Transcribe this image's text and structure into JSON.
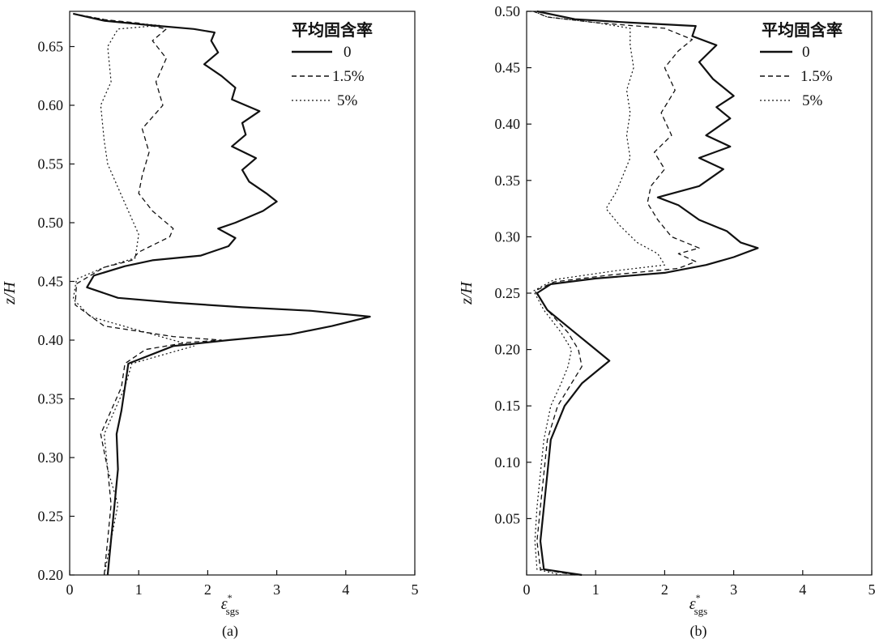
{
  "chart_data": [
    {
      "type": "line",
      "panel_label": "(a)",
      "xlabel_main": "ε",
      "xlabel_sup": "*",
      "xlabel_sub": "sgs",
      "ylabel": "z/H",
      "xlim": [
        0,
        5
      ],
      "ylim": [
        0.2,
        0.68
      ],
      "xticks": [
        "0",
        "1",
        "2",
        "3",
        "4",
        "5"
      ],
      "yticks": [
        "0.20",
        "0.25",
        "0.30",
        "0.35",
        "0.40",
        "0.45",
        "0.50",
        "0.55",
        "0.60",
        "0.65"
      ],
      "legend": {
        "title": "平均固含率",
        "position": "top-right"
      },
      "series": [
        {
          "name": "0",
          "style": "solid",
          "points": [
            [
              0.55,
              0.2
            ],
            [
              0.6,
              0.23
            ],
            [
              0.65,
              0.26
            ],
            [
              0.7,
              0.29
            ],
            [
              0.68,
              0.32
            ],
            [
              0.75,
              0.34
            ],
            [
              0.8,
              0.36
            ],
            [
              0.85,
              0.38
            ],
            [
              1.5,
              0.395
            ],
            [
              2.3,
              0.4
            ],
            [
              3.2,
              0.405
            ],
            [
              3.8,
              0.412
            ],
            [
              4.35,
              0.42
            ],
            [
              3.5,
              0.425
            ],
            [
              2.5,
              0.428
            ],
            [
              1.5,
              0.432
            ],
            [
              0.7,
              0.436
            ],
            [
              0.25,
              0.445
            ],
            [
              0.35,
              0.455
            ],
            [
              0.8,
              0.463
            ],
            [
              1.2,
              0.468
            ],
            [
              1.9,
              0.472
            ],
            [
              2.3,
              0.48
            ],
            [
              2.4,
              0.487
            ],
            [
              2.15,
              0.495
            ],
            [
              2.4,
              0.5
            ],
            [
              2.8,
              0.51
            ],
            [
              3.0,
              0.518
            ],
            [
              2.85,
              0.525
            ],
            [
              2.6,
              0.535
            ],
            [
              2.5,
              0.545
            ],
            [
              2.7,
              0.555
            ],
            [
              2.35,
              0.565
            ],
            [
              2.55,
              0.575
            ],
            [
              2.5,
              0.585
            ],
            [
              2.75,
              0.595
            ],
            [
              2.35,
              0.605
            ],
            [
              2.4,
              0.615
            ],
            [
              2.2,
              0.625
            ],
            [
              1.95,
              0.635
            ],
            [
              2.15,
              0.645
            ],
            [
              2.05,
              0.655
            ],
            [
              2.1,
              0.662
            ],
            [
              1.8,
              0.665
            ],
            [
              1.2,
              0.668
            ],
            [
              0.5,
              0.672
            ],
            [
              0.05,
              0.678
            ]
          ]
        },
        {
          "name": "1.5%",
          "style": "dashed",
          "points": [
            [
              0.5,
              0.2
            ],
            [
              0.55,
              0.23
            ],
            [
              0.6,
              0.26
            ],
            [
              0.55,
              0.29
            ],
            [
              0.45,
              0.32
            ],
            [
              0.6,
              0.34
            ],
            [
              0.75,
              0.36
            ],
            [
              0.8,
              0.38
            ],
            [
              1.1,
              0.392
            ],
            [
              1.7,
              0.398
            ],
            [
              2.2,
              0.4
            ],
            [
              1.5,
              0.403
            ],
            [
              0.5,
              0.412
            ],
            [
              0.08,
              0.43
            ],
            [
              0.1,
              0.448
            ],
            [
              0.5,
              0.462
            ],
            [
              0.9,
              0.468
            ],
            [
              1.0,
              0.475
            ],
            [
              1.45,
              0.488
            ],
            [
              1.5,
              0.495
            ],
            [
              1.2,
              0.51
            ],
            [
              1.0,
              0.525
            ],
            [
              1.05,
              0.54
            ],
            [
              1.15,
              0.56
            ],
            [
              1.05,
              0.58
            ],
            [
              1.35,
              0.6
            ],
            [
              1.25,
              0.62
            ],
            [
              1.4,
              0.64
            ],
            [
              1.2,
              0.655
            ],
            [
              1.4,
              0.665
            ],
            [
              1.0,
              0.67
            ],
            [
              0.5,
              0.673
            ],
            [
              0.05,
              0.678
            ]
          ]
        },
        {
          "name": "5%",
          "style": "dotted",
          "points": [
            [
              0.5,
              0.2
            ],
            [
              0.6,
              0.23
            ],
            [
              0.7,
              0.26
            ],
            [
              0.55,
              0.29
            ],
            [
              0.5,
              0.32
            ],
            [
              0.65,
              0.34
            ],
            [
              0.8,
              0.36
            ],
            [
              0.9,
              0.38
            ],
            [
              1.5,
              0.39
            ],
            [
              1.8,
              0.395
            ],
            [
              1.2,
              0.405
            ],
            [
              0.3,
              0.42
            ],
            [
              0.05,
              0.435
            ],
            [
              0.1,
              0.452
            ],
            [
              0.5,
              0.462
            ],
            [
              0.95,
              0.47
            ],
            [
              1.0,
              0.49
            ],
            [
              0.85,
              0.51
            ],
            [
              0.7,
              0.53
            ],
            [
              0.55,
              0.55
            ],
            [
              0.5,
              0.57
            ],
            [
              0.45,
              0.6
            ],
            [
              0.6,
              0.62
            ],
            [
              0.55,
              0.65
            ],
            [
              0.7,
              0.665
            ],
            [
              1.3,
              0.668
            ],
            [
              0.6,
              0.672
            ],
            [
              0.05,
              0.678
            ]
          ]
        }
      ]
    },
    {
      "type": "line",
      "panel_label": "(b)",
      "xlabel_main": "ε",
      "xlabel_sup": "*",
      "xlabel_sub": "sgs",
      "ylabel": "z/H",
      "xlim": [
        0,
        5
      ],
      "ylim": [
        0,
        0.5
      ],
      "xticks": [
        "0",
        "1",
        "2",
        "3",
        "4",
        "5"
      ],
      "yticks": [
        "0.05",
        "0.10",
        "0.15",
        "0.20",
        "0.25",
        "0.30",
        "0.35",
        "0.40",
        "0.45",
        "0.50"
      ],
      "legend": {
        "title": "平均固含率",
        "position": "top-right"
      },
      "series": [
        {
          "name": "0",
          "style": "solid",
          "points": [
            [
              0.8,
              0.0
            ],
            [
              0.25,
              0.005
            ],
            [
              0.2,
              0.03
            ],
            [
              0.25,
              0.06
            ],
            [
              0.3,
              0.09
            ],
            [
              0.35,
              0.12
            ],
            [
              0.55,
              0.15
            ],
            [
              0.8,
              0.17
            ],
            [
              1.0,
              0.18
            ],
            [
              1.2,
              0.19
            ],
            [
              0.9,
              0.205
            ],
            [
              0.7,
              0.215
            ],
            [
              0.3,
              0.235
            ],
            [
              0.15,
              0.25
            ],
            [
              0.35,
              0.258
            ],
            [
              1.0,
              0.263
            ],
            [
              2.0,
              0.268
            ],
            [
              2.6,
              0.275
            ],
            [
              3.0,
              0.282
            ],
            [
              3.35,
              0.29
            ],
            [
              3.1,
              0.295
            ],
            [
              2.9,
              0.305
            ],
            [
              2.5,
              0.315
            ],
            [
              2.2,
              0.328
            ],
            [
              1.9,
              0.335
            ],
            [
              2.5,
              0.345
            ],
            [
              2.85,
              0.36
            ],
            [
              2.5,
              0.37
            ],
            [
              2.95,
              0.38
            ],
            [
              2.6,
              0.39
            ],
            [
              2.95,
              0.405
            ],
            [
              2.75,
              0.415
            ],
            [
              3.0,
              0.425
            ],
            [
              2.7,
              0.44
            ],
            [
              2.5,
              0.455
            ],
            [
              2.75,
              0.47
            ],
            [
              2.4,
              0.478
            ],
            [
              2.45,
              0.487
            ],
            [
              1.5,
              0.49
            ],
            [
              0.7,
              0.493
            ],
            [
              0.15,
              0.5
            ]
          ]
        },
        {
          "name": "1.5%",
          "style": "dashed",
          "points": [
            [
              0.7,
              0.0
            ],
            [
              0.2,
              0.005
            ],
            [
              0.15,
              0.03
            ],
            [
              0.2,
              0.06
            ],
            [
              0.25,
              0.09
            ],
            [
              0.3,
              0.12
            ],
            [
              0.45,
              0.15
            ],
            [
              0.65,
              0.17
            ],
            [
              0.8,
              0.185
            ],
            [
              0.75,
              0.2
            ],
            [
              0.6,
              0.215
            ],
            [
              0.3,
              0.235
            ],
            [
              0.12,
              0.252
            ],
            [
              0.4,
              0.26
            ],
            [
              1.2,
              0.266
            ],
            [
              2.2,
              0.272
            ],
            [
              2.45,
              0.278
            ],
            [
              2.2,
              0.285
            ],
            [
              2.5,
              0.29
            ],
            [
              2.1,
              0.3
            ],
            [
              1.9,
              0.315
            ],
            [
              1.75,
              0.33
            ],
            [
              1.8,
              0.345
            ],
            [
              2.0,
              0.36
            ],
            [
              1.85,
              0.375
            ],
            [
              2.1,
              0.39
            ],
            [
              1.95,
              0.41
            ],
            [
              2.15,
              0.43
            ],
            [
              2.0,
              0.45
            ],
            [
              2.2,
              0.465
            ],
            [
              2.4,
              0.475
            ],
            [
              2.0,
              0.485
            ],
            [
              1.0,
              0.49
            ],
            [
              0.3,
              0.495
            ],
            [
              0.1,
              0.5
            ]
          ]
        },
        {
          "name": "5%",
          "style": "dotted",
          "points": [
            [
              0.5,
              0.0
            ],
            [
              0.15,
              0.005
            ],
            [
              0.12,
              0.03
            ],
            [
              0.15,
              0.06
            ],
            [
              0.2,
              0.09
            ],
            [
              0.25,
              0.12
            ],
            [
              0.35,
              0.15
            ],
            [
              0.5,
              0.17
            ],
            [
              0.6,
              0.185
            ],
            [
              0.65,
              0.2
            ],
            [
              0.5,
              0.215
            ],
            [
              0.25,
              0.235
            ],
            [
              0.1,
              0.252
            ],
            [
              0.4,
              0.262
            ],
            [
              1.3,
              0.27
            ],
            [
              2.0,
              0.275
            ],
            [
              1.9,
              0.285
            ],
            [
              1.6,
              0.295
            ],
            [
              1.35,
              0.31
            ],
            [
              1.15,
              0.325
            ],
            [
              1.3,
              0.34
            ],
            [
              1.4,
              0.355
            ],
            [
              1.5,
              0.37
            ],
            [
              1.45,
              0.39
            ],
            [
              1.5,
              0.41
            ],
            [
              1.45,
              0.43
            ],
            [
              1.55,
              0.45
            ],
            [
              1.5,
              0.47
            ],
            [
              1.5,
              0.485
            ],
            [
              1.0,
              0.49
            ],
            [
              0.3,
              0.495
            ],
            [
              0.1,
              0.5
            ]
          ]
        }
      ]
    }
  ]
}
